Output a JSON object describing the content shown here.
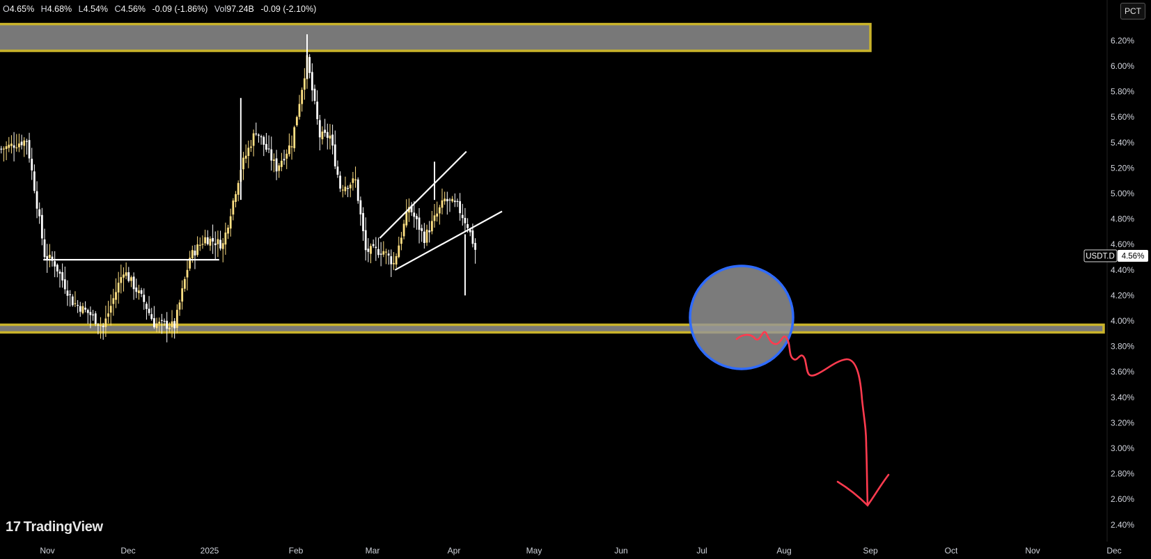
{
  "header": {
    "symbol_tag": "USDT.D",
    "open_key": "O",
    "open": "4.65%",
    "high_key": "H",
    "high": "4.68%",
    "low_key": "L",
    "low": "4.54%",
    "close_key": "C",
    "close": "4.56%",
    "change": "-0.09 (-1.86%)",
    "vol_key": "Vol",
    "vol": "97.24B",
    "vol_change": "-0.09 (-2.10%)",
    "scale_button": "PCT"
  },
  "branding": {
    "logo_text": "TradingView",
    "logo_mark": "17"
  },
  "colors": {
    "up": "#ffe083",
    "down": "#ffffff",
    "zone_fill": "#787878",
    "zone_border": "#c9b32a",
    "circle": "#2f6bff",
    "arrow": "#ff3b4f",
    "trendline": "#ffffff"
  },
  "chart_data": {
    "type": "candlestick",
    "symbol": "USDT.D",
    "ylim": [
      2.4,
      6.4
    ],
    "y_ticks": [
      "6.20%",
      "6.00%",
      "5.80%",
      "5.60%",
      "5.40%",
      "5.20%",
      "5.00%",
      "4.80%",
      "4.60%",
      "4.40%",
      "4.20%",
      "4.00%",
      "3.80%",
      "3.60%",
      "3.40%",
      "3.20%",
      "3.00%",
      "2.80%",
      "2.60%",
      "2.40%"
    ],
    "x_ticks": [
      "Nov",
      "Dec",
      "2025",
      "Feb",
      "Mar",
      "Apr",
      "May",
      "Jun",
      "Jul",
      "Aug",
      "Sep",
      "Oct",
      "Nov",
      "Dec"
    ],
    "last_price_label": "4.56%",
    "anchors": [
      {
        "day": 0,
        "price": 5.35
      },
      {
        "day": 10,
        "price": 5.42
      },
      {
        "day": 13,
        "price": 5.05
      },
      {
        "day": 17,
        "price": 4.52
      },
      {
        "day": 21,
        "price": 4.45
      },
      {
        "day": 28,
        "price": 4.15
      },
      {
        "day": 35,
        "price": 4.05
      },
      {
        "day": 40,
        "price": 3.95
      },
      {
        "day": 48,
        "price": 4.4
      },
      {
        "day": 56,
        "price": 4.15
      },
      {
        "day": 60,
        "price": 3.98
      },
      {
        "day": 68,
        "price": 3.96
      },
      {
        "day": 74,
        "price": 4.5
      },
      {
        "day": 80,
        "price": 4.65
      },
      {
        "day": 87,
        "price": 4.6
      },
      {
        "day": 94,
        "price": 5.2
      },
      {
        "day": 100,
        "price": 5.5
      },
      {
        "day": 108,
        "price": 5.2
      },
      {
        "day": 114,
        "price": 5.4
      },
      {
        "day": 120,
        "price": 6.05
      },
      {
        "day": 125,
        "price": 5.45
      },
      {
        "day": 129,
        "price": 5.45
      },
      {
        "day": 133,
        "price": 5.05
      },
      {
        "day": 139,
        "price": 5.1
      },
      {
        "day": 143,
        "price": 4.55
      },
      {
        "day": 150,
        "price": 4.55
      },
      {
        "day": 154,
        "price": 4.45
      },
      {
        "day": 160,
        "price": 4.9
      },
      {
        "day": 166,
        "price": 4.65
      },
      {
        "day": 174,
        "price": 4.95
      },
      {
        "day": 179,
        "price": 4.9
      },
      {
        "day": 183,
        "price": 4.75
      },
      {
        "day": 186,
        "price": 4.56
      }
    ],
    "zones": [
      {
        "name": "supply-zone",
        "top": 6.33,
        "bottom": 6.12
      },
      {
        "name": "demand-zone",
        "top": 3.97,
        "bottom": 3.91
      }
    ],
    "trendlines": [
      {
        "name": "range-top-line",
        "from": {
          "day": 17,
          "price": 4.48
        },
        "to": {
          "day": 86,
          "price": 4.48
        }
      },
      {
        "name": "wedge-upper-line",
        "from": {
          "day": 149,
          "price": 4.65
        },
        "to": {
          "day": 183,
          "price": 5.33
        }
      },
      {
        "name": "wedge-lower-line",
        "from": {
          "day": 155,
          "price": 4.4
        },
        "to": {
          "day": 197,
          "price": 4.86
        }
      }
    ]
  }
}
